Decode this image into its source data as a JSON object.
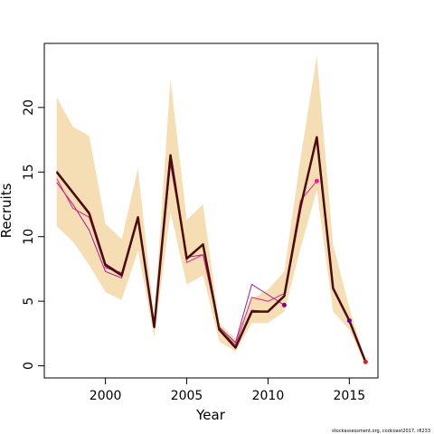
{
  "chart_data": {
    "type": "line",
    "xlabel": "Year",
    "ylabel": "Recruits",
    "footnote": "stockassessment.org, codcoast2017, r8233",
    "xlim": [
      1996.24,
      2016.76
    ],
    "ylim": [
      -0.94,
      24.96
    ],
    "xticks": [
      2000,
      2005,
      2010,
      2015
    ],
    "yticks": [
      0,
      5,
      10,
      15,
      20
    ],
    "band": {
      "color": "#f5deb3",
      "x": [
        1997,
        1998,
        1999,
        2000,
        2001,
        2002,
        2003,
        2004,
        2005,
        2006,
        2007,
        2008,
        2009,
        2010,
        2011,
        2012,
        2013,
        2014,
        2015,
        2016
      ],
      "lower": [
        10.8,
        9.6,
        7.8,
        5.7,
        5.1,
        8.9,
        2.2,
        11.9,
        6.3,
        7.0,
        1.9,
        1.1,
        3.3,
        3.3,
        4.2,
        9.1,
        13.6,
        4.2,
        2.8,
        0.07
      ],
      "upper": [
        20.8,
        18.5,
        17.8,
        11.0,
        9.8,
        15.3,
        3.7,
        22.2,
        11.3,
        12.5,
        3.3,
        2.1,
        5.2,
        5.9,
        7.3,
        16.1,
        24.0,
        9.4,
        4.5,
        0.35
      ]
    },
    "series": [
      {
        "color": "#a0208f",
        "point_color": "#800080",
        "line_width": 1,
        "x": [
          1997,
          1998,
          1999,
          2000,
          2001,
          2002,
          2003,
          2004,
          2005,
          2006,
          2007,
          2008,
          2009,
          2010,
          2011
        ],
        "values": [
          14.2,
          12.5,
          10.5,
          7.3,
          6.8,
          11.3,
          3.1,
          15.6,
          8.4,
          8.6,
          3.0,
          1.8,
          6.3,
          5.5,
          4.7
        ]
      },
      {
        "color": "#e0218a",
        "point_color": "#ff1493",
        "line_width": 1,
        "x": [
          1997,
          1998,
          1999,
          2000,
          2001,
          2002,
          2003,
          2004,
          2005,
          2006,
          2007,
          2008,
          2009,
          2010,
          2011,
          2012,
          2013
        ],
        "values": [
          14.5,
          12.2,
          11.5,
          7.6,
          7.2,
          11.4,
          3.0,
          16.0,
          8.0,
          8.6,
          2.9,
          1.6,
          5.3,
          5.0,
          5.6,
          12.8,
          14.3
        ]
      },
      {
        "color": "#7a0a8a",
        "point_color": "#6a0080",
        "line_width": 1,
        "x": [
          1997,
          1998,
          1999,
          2000,
          2001,
          2002,
          2003,
          2004,
          2005,
          2006,
          2007,
          2008,
          2009,
          2010,
          2011,
          2012,
          2013,
          2014,
          2015
        ],
        "values": [
          15.1,
          13.5,
          11.9,
          7.9,
          7.1,
          11.5,
          3.0,
          16.3,
          8.3,
          9.4,
          2.8,
          1.4,
          4.3,
          4.2,
          5.4,
          12.4,
          17.6,
          6.0,
          3.5
        ]
      },
      {
        "color": "#4a0c0c",
        "point_color": "#e02010",
        "line_width": 2.5,
        "x": [
          1997,
          1998,
          1999,
          2000,
          2001,
          2002,
          2003,
          2004,
          2005,
          2006,
          2007,
          2008,
          2009,
          2010,
          2011,
          2012,
          2013,
          2014,
          2015,
          2016
        ],
        "values": [
          15.0,
          13.4,
          11.8,
          7.8,
          7.0,
          11.5,
          3.0,
          16.3,
          8.3,
          9.4,
          2.8,
          1.4,
          4.2,
          4.2,
          5.4,
          12.3,
          17.7,
          6.0,
          3.5,
          0.3
        ]
      }
    ]
  }
}
